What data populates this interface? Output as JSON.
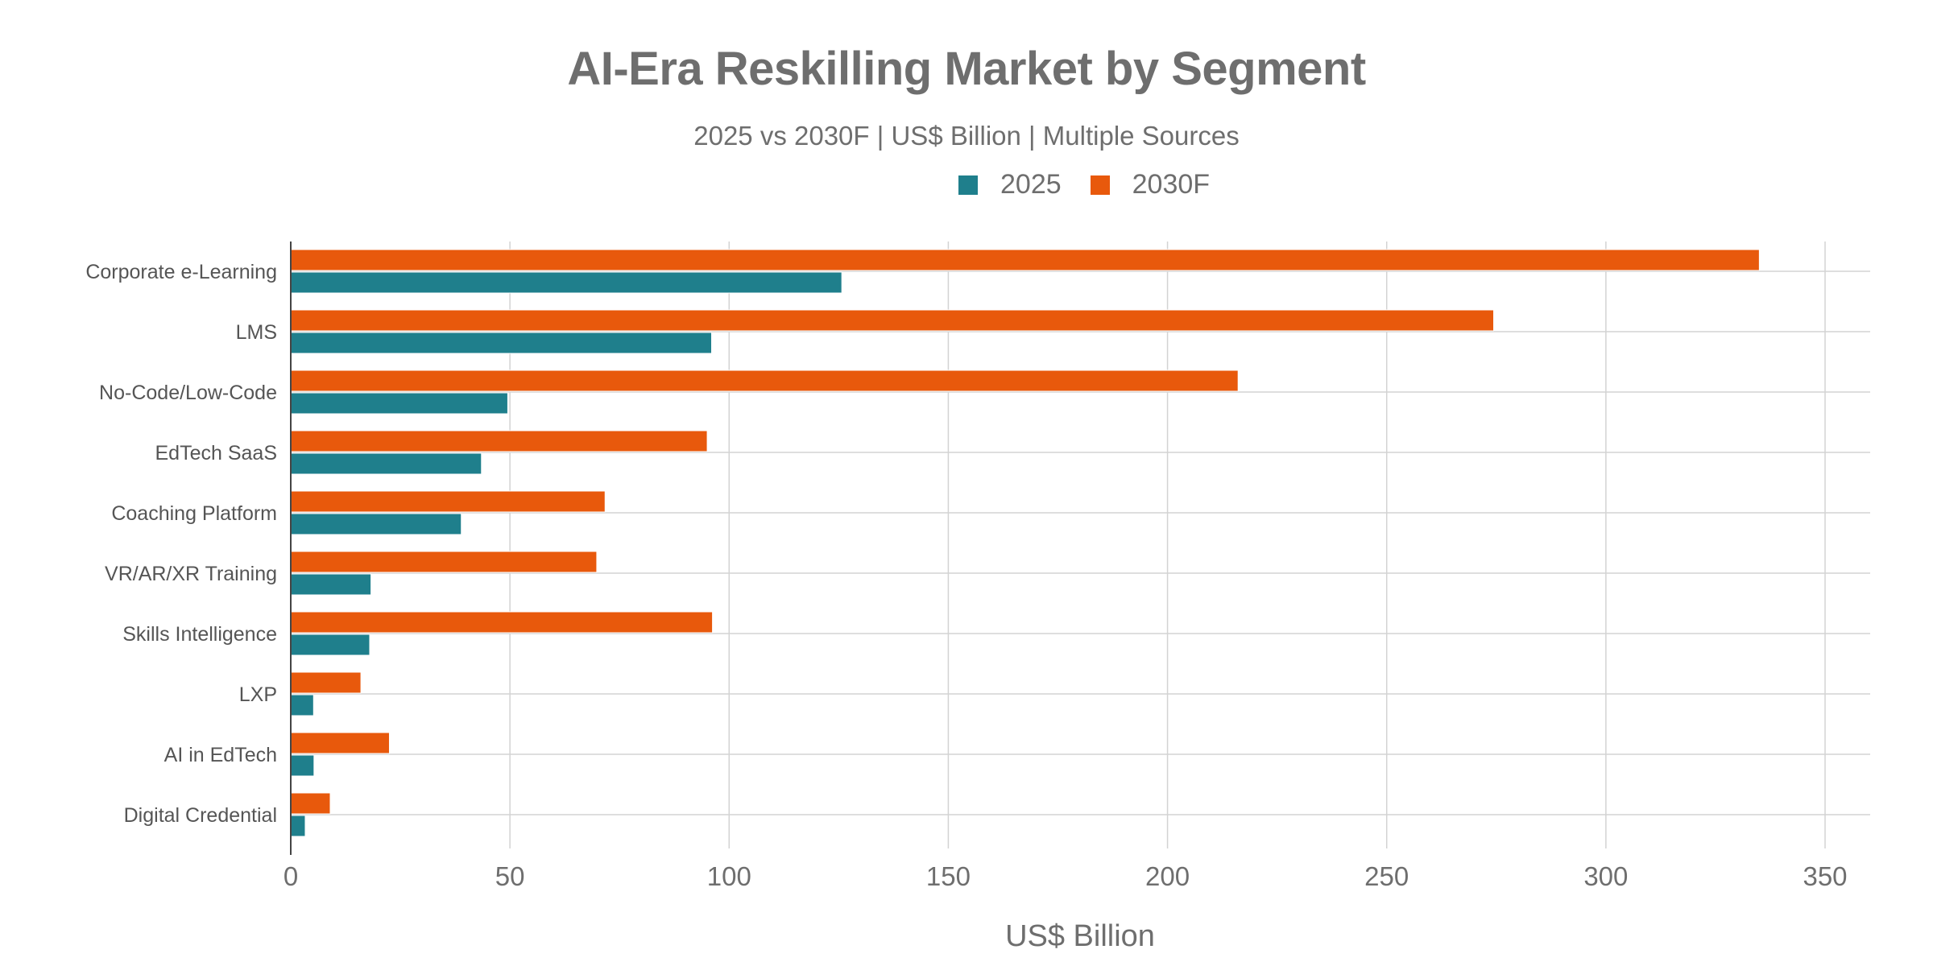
{
  "chart_data": {
    "type": "bar",
    "orientation": "horizontal",
    "title": "AI-Era Reskilling Market by Segment",
    "subtitle": "2025 vs 2030F | US$ Billion | Multiple Sources",
    "xlabel": "US$ Billion",
    "ylabel": "",
    "xlim": [
      0,
      360
    ],
    "xticks": [
      0,
      50,
      100,
      150,
      200,
      250,
      300,
      350
    ],
    "grid": true,
    "legend_position": "top-center",
    "categories": [
      "Corporate e-Learning",
      "LMS",
      "No-Code/Low-Code",
      "EdTech SaaS",
      "Coaching Platform",
      "VR/AR/XR Training",
      "Skills Intelligence",
      "LXP",
      "AI in EdTech",
      "Digital Credential"
    ],
    "series": [
      {
        "name": "2025",
        "color": "#1f7f8c",
        "values": [
          125.7,
          96,
          49.5,
          43.5,
          38.9,
          18.3,
          18,
          5.2,
          5.3,
          3.3
        ]
      },
      {
        "name": "2030F",
        "color": "#e8590c",
        "values": [
          335,
          274.4,
          216.1,
          95,
          71.7,
          69.8,
          96.2,
          16,
          22.5,
          9
        ]
      }
    ]
  }
}
